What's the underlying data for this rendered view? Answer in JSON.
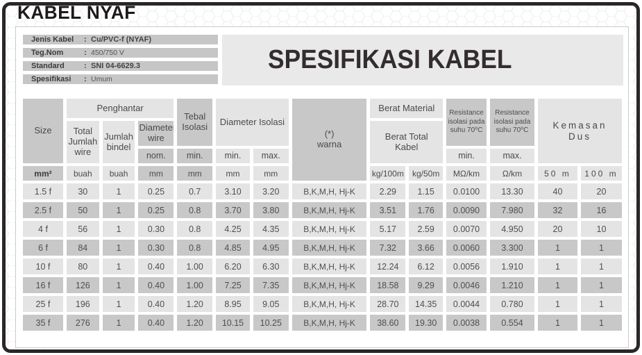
{
  "title": "KABEL NYAF",
  "spec_title": "SPESIFIKASI KABEL",
  "info": {
    "separator": ":",
    "rows": [
      {
        "label": "Jenis Kabel",
        "value": "Cu/PVC-f (NYAF)"
      },
      {
        "label": "Teg.Nom",
        "value": "450/750 V"
      },
      {
        "label": "Standard",
        "value": "SNI 04-6629.3"
      },
      {
        "label": "Spesifikasi",
        "value": "Umum"
      }
    ]
  },
  "table": {
    "headers": {
      "size": "Size",
      "penghantar": "Penghantar",
      "total_jumlah_wire": "Total\nJumlah\nwire",
      "jumlah_bindel": "Jumlah\nbindel",
      "diameter_wire": "Diameter\nwire",
      "nom": "nom.",
      "tebal_isolasi": "Tebal\nIsolasi",
      "tebal_min": "min.",
      "diameter_isolasi": "Diameter Isolasi",
      "diso_min": "min.",
      "diso_max": "max.",
      "warna": "(*)\nwarna",
      "berat_material": "Berat Material",
      "berat_total_kabel": "Berat Total\nKabel",
      "resistance_min_title": "Resistance\nisolasi pada\nsuhu 70⁰C",
      "resistance_max_title": "Resistance\nisolasi pada\nsuhu 70⁰C",
      "res_min": "min.",
      "res_max": "max.",
      "kemasan_dus": "Kemasan\nDus"
    },
    "units": [
      "mm²",
      "buah",
      "buah",
      "mm",
      "mm",
      "mm",
      "mm",
      "kg/100m",
      "kg/50m",
      "MΩ/km",
      "Ω/km",
      "50 m",
      "100 m"
    ],
    "rows": [
      [
        "1.5 f",
        "30",
        "1",
        "0.25",
        "0.7",
        "3.10",
        "3.20",
        "B,K,M,H, Hj-K",
        "2.29",
        "1.15",
        "0.0100",
        "13.30",
        "40",
        "20"
      ],
      [
        "2.5 f",
        "50",
        "1",
        "0.25",
        "0.8",
        "3.70",
        "3.80",
        "B,K,M,H, Hj-K",
        "3.51",
        "1.76",
        "0.0090",
        "7.980",
        "32",
        "16"
      ],
      [
        "4 f",
        "56",
        "1",
        "0.30",
        "0.8",
        "4.25",
        "4.35",
        "B,K,M,H, Hj-K",
        "5.17",
        "2.59",
        "0.0070",
        "4.950",
        "20",
        "10"
      ],
      [
        "6 f",
        "84",
        "1",
        "0.30",
        "0.8",
        "4.85",
        "4.95",
        "B,K,M,H, Hj-K",
        "7.32",
        "3.66",
        "0.0060",
        "3.300",
        "1",
        "1"
      ],
      [
        "10 f",
        "80",
        "1",
        "0.40",
        "1.00",
        "6.20",
        "6.30",
        "B,K,M,H, Hj-K",
        "12.24",
        "6.12",
        "0.0056",
        "1.910",
        "1",
        "1"
      ],
      [
        "16 f",
        "126",
        "1",
        "0.40",
        "1.00",
        "7.25",
        "7.35",
        "B,K,M,H, Hj-K",
        "18.58",
        "9.29",
        "0.0046",
        "1.210",
        "1",
        "1"
      ],
      [
        "25 f",
        "196",
        "1",
        "0.40",
        "1.20",
        "8.95",
        "9.05",
        "B,K,M,H, Hj-K",
        "28.70",
        "14.35",
        "0.0044",
        "0.780",
        "1",
        "1"
      ],
      [
        "35 f",
        "276",
        "1",
        "0.40",
        "1.20",
        "10.15",
        "10.25",
        "B,K,M,H, Hj-K",
        "38.60",
        "19.30",
        "0.0038",
        "0.554",
        "1",
        "1"
      ]
    ]
  },
  "colors": {
    "frame_black": "#2b2627",
    "cell_light": "#e4e4e4",
    "cell_dark": "#c8c8c8",
    "info_bar": "#c6c6c6",
    "spec_box": "#e9e9e9",
    "hex_pattern_stroke": "#e9edef"
  }
}
